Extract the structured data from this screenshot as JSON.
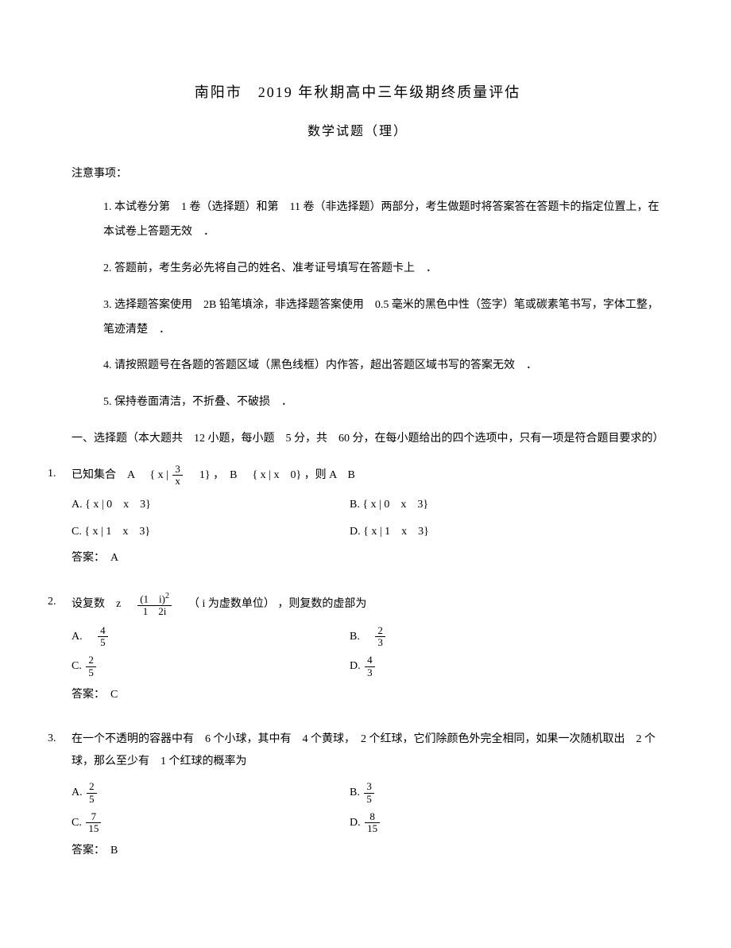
{
  "doc": {
    "title": "南阳市　2019 年秋期高中三年级期终质量评估",
    "subtitle": "数学试题（理）",
    "notice_label": "注意事项：",
    "notices": [
      "1. 本试卷分第　1 卷（选择题）和第　11 卷（非选择题）两部分，考生做题时将答案答在答题卡的指定位置上，在本试卷上答题无效　．",
      "2. 答题前，考生务必先将自己的姓名、准考证号填写在答题卡上　．",
      "3. 选择题答案使用　2B 铅笔填涂，非选择题答案使用　0.5 毫米的黑色中性（签字）笔或碳素笔书写，字体工整，笔迹清楚　．",
      "4. 请按照题号在各题的答题区域（黑色线框）内作答，超出答题区域书写的答案无效　．",
      "5. 保持卷面清洁，不折叠、不破损　．"
    ],
    "section1_header": "一、选择题（本大题共　12 小题，每小题　5 分，共　60 分，在每小题给出的四个选项中，只有一项是符合题目要求的）"
  },
  "q1": {
    "num": "1.",
    "stem_pre": "已知集合　A",
    "stem_set1a": "{ x |",
    "stem_frac_num": "3",
    "stem_frac_den": "x",
    "stem_set1b": "1} ，　B",
    "stem_set2": "{ x | x　0} ，则 A　B",
    "optA": "A. { x | 0　x　3}",
    "optB": "B. { x | 0　x　3}",
    "optC": "C. { x | 1　x　3}",
    "optD": "D. { x | 1　x　3}",
    "answer": "答案：　A"
  },
  "q2": {
    "num": "2.",
    "stem_pre": "设复数　z",
    "stem_frac_num": "(1　i)",
    "stem_sup": "2",
    "stem_frac_den": "1　2i",
    "stem_post": "（ i 为虚数单位） ，则复数的虚部为",
    "optA_pre": "A.　",
    "optA_num": "4",
    "optA_den": "5",
    "optB_pre": "B.　",
    "optB_num": "2",
    "optB_den": "3",
    "optC_pre": "C.",
    "optC_num": "2",
    "optC_den": "5",
    "optD_pre": "D.",
    "optD_num": "4",
    "optD_den": "3",
    "answer": "答案：　C"
  },
  "q3": {
    "num": "3.",
    "stem": "在一个不透明的容器中有　6 个小球，其中有　4 个黄球，　2 个红球，它们除颜色外完全相同，如果一次随机取出　2 个球，那么至少有　1 个红球的概率为",
    "optA_pre": "A.",
    "optA_num": "2",
    "optA_den": "5",
    "optB_pre": "B.",
    "optB_num": "3",
    "optB_den": "5",
    "optC_pre": "C.",
    "optC_num": "7",
    "optC_den": "15",
    "optD_pre": "D.",
    "optD_num": "8",
    "optD_den": "15",
    "answer": "答案：　B"
  }
}
